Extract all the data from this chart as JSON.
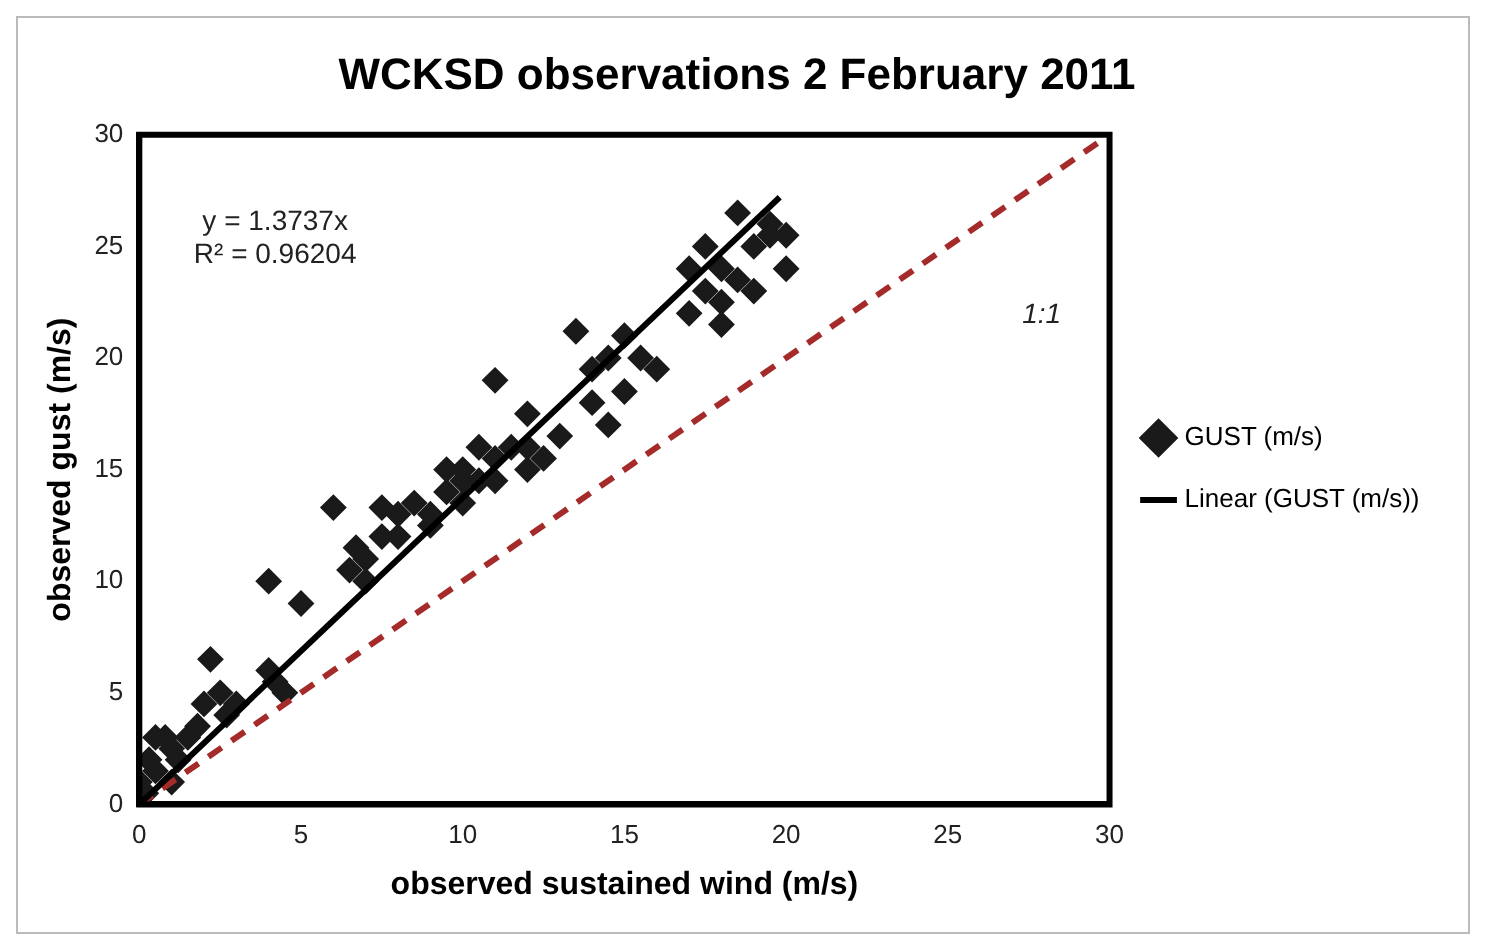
{
  "chart_data": {
    "type": "scatter",
    "title": "WCKSD observations 2 February 2011",
    "xlabel": "observed sustained wind (m/s)",
    "ylabel": "observed gust (m/s)",
    "xlim": [
      0,
      30
    ],
    "ylim": [
      0,
      30
    ],
    "xticks": [
      0,
      5,
      10,
      15,
      20,
      25,
      30
    ],
    "yticks": [
      0,
      5,
      10,
      15,
      20,
      25,
      30
    ],
    "grid": false,
    "legend": "right",
    "series": [
      {
        "name": "GUST (m/s)",
        "color": "#1a1a1a",
        "marker": "diamond",
        "x": [
          0,
          0.2,
          0.3,
          0.5,
          0.5,
          0.8,
          1,
          1,
          1.2,
          1.5,
          1.8,
          2,
          2.2,
          2.5,
          2.7,
          3,
          4,
          4,
          4.2,
          4.5,
          5,
          6,
          6.5,
          6.7,
          7,
          7,
          7.5,
          7.5,
          8,
          8,
          8.5,
          9,
          9,
          9.5,
          9.5,
          10,
          10,
          10,
          10.5,
          10.5,
          11,
          11,
          11,
          11.5,
          12,
          12,
          12,
          12.5,
          13,
          13.5,
          14,
          14,
          14.5,
          14.5,
          15,
          15,
          15.5,
          16,
          17,
          17,
          17.5,
          17.5,
          18,
          18,
          18,
          18.5,
          18.5,
          19,
          19,
          19.5,
          19.5,
          20,
          20
        ],
        "values": [
          1,
          0.5,
          2,
          1.5,
          3,
          3,
          2.5,
          1,
          2,
          3,
          3.5,
          4.5,
          6.5,
          5,
          4,
          4.5,
          10,
          6,
          5.5,
          5,
          9,
          13.3,
          10.5,
          11.5,
          11,
          10,
          12,
          13.3,
          12,
          13,
          13.5,
          13,
          12.5,
          14,
          15,
          14.5,
          15,
          13.5,
          16,
          14.5,
          15.5,
          19,
          14.5,
          16,
          15,
          16,
          17.5,
          15.5,
          16.5,
          21.2,
          18,
          19.5,
          20,
          17,
          21,
          18.5,
          20,
          19.5,
          22,
          24,
          23,
          25,
          24,
          21.5,
          22.5,
          26.5,
          23.5,
          25,
          23,
          26,
          25.5,
          24,
          25.5
        ]
      },
      {
        "name": "Linear (GUST (m/s))",
        "type": "line",
        "color": "#000000",
        "line_style": "solid",
        "x": [
          0,
          19.8
        ],
        "values": [
          0,
          27.2
        ]
      },
      {
        "type": "line",
        "color": "#a52a2a",
        "line_style": "dashed",
        "x": [
          0,
          30
        ],
        "values": [
          0,
          30
        ]
      }
    ],
    "annotations": [
      "y = 1.3737x",
      "R² = 0.96204",
      "1:1"
    ]
  }
}
